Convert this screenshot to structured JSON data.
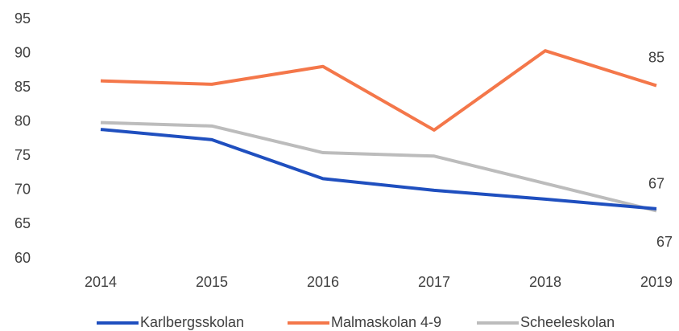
{
  "chart_data": {
    "type": "line",
    "categories": [
      "2014",
      "2015",
      "2016",
      "2017",
      "2018",
      "2019"
    ],
    "series": [
      {
        "name": "Karlbergsskolan",
        "color": "#1f4fbf",
        "values": [
          78.9,
          77.4,
          71.7,
          70,
          68.7,
          67.3
        ],
        "value_labels": [
          null,
          null,
          null,
          null,
          null,
          "67"
        ]
      },
      {
        "name": "Malmaskolan 4-9",
        "color": "#f4774a",
        "values": [
          86,
          85.5,
          88.1,
          78.8,
          90.4,
          85.3
        ],
        "value_labels": [
          null,
          null,
          null,
          null,
          null,
          "85"
        ]
      },
      {
        "name": "Scheeleskolan",
        "color": "#bcbcbc",
        "values": [
          79.9,
          79.4,
          75.5,
          75,
          71,
          67
        ],
        "value_labels": [
          null,
          null,
          null,
          null,
          null,
          "67"
        ]
      }
    ],
    "ylim": [
      60,
      95
    ],
    "yticks": [
      60,
      65,
      70,
      75,
      80,
      85,
      90,
      95
    ],
    "grid": false,
    "legend": "bottom"
  }
}
